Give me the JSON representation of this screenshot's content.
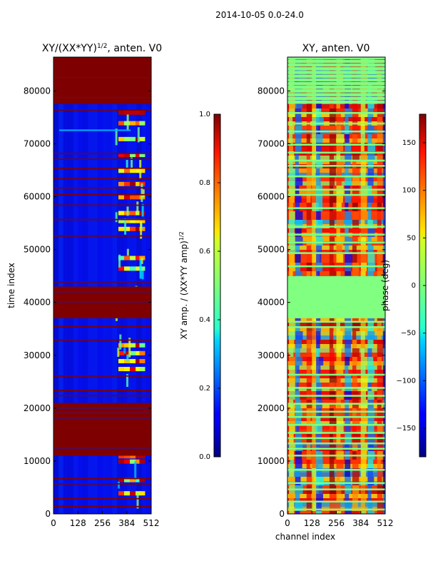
{
  "figure": {
    "suptitle": "2014-10-05 0.0-24.0"
  },
  "chart_data": [
    {
      "type": "heatmap",
      "title": "XY/(XX*YY)^1/2, anten. V0",
      "title_main": "XY/(XX*YY)",
      "title_sup": "1/2",
      "title_rest": ", anten. V0",
      "xlabel": "",
      "ylabel": "time index",
      "xlim": [
        0,
        512
      ],
      "ylim": [
        0,
        86400
      ],
      "x_ticks": [
        0,
        128,
        256,
        384,
        512
      ],
      "y_ticks": [
        0,
        10000,
        20000,
        30000,
        40000,
        50000,
        60000,
        70000,
        80000
      ],
      "flagged_time_bands": [
        [
          11000,
          21000
        ],
        [
          37000,
          43000
        ],
        [
          77500,
          86400
        ]
      ],
      "colorbar": {
        "label": "XY amp. / (XX*YY amp)^1/2",
        "label_main": "XY amp. / (XX*YY amp)",
        "label_sup": "1/2",
        "range": [
          0.0,
          1.0
        ],
        "ticks": [
          "0.0",
          "0.2",
          "0.4",
          "0.6",
          "0.8",
          "1.0"
        ],
        "tick_values": [
          0.0,
          0.2,
          0.4,
          0.6,
          0.8,
          1.0
        ]
      }
    },
    {
      "type": "heatmap",
      "title": "XY, anten. V0",
      "xlabel": "channel index",
      "ylabel": "",
      "xlim": [
        0,
        512
      ],
      "ylim": [
        0,
        86400
      ],
      "x_ticks": [
        0,
        128,
        256,
        384,
        512
      ],
      "y_ticks": [
        0,
        10000,
        20000,
        30000,
        40000,
        50000,
        60000,
        70000,
        80000
      ],
      "flagged_time_bands": [
        [
          37000,
          45000
        ]
      ],
      "colorbar": {
        "label": "phase (deg)",
        "range": [
          -180,
          180
        ],
        "ticks": [
          "−150",
          "−100",
          "−50",
          "0",
          "50",
          "100",
          "150"
        ],
        "tick_values": [
          -150,
          -100,
          -50,
          0,
          50,
          100,
          150
        ]
      }
    }
  ]
}
